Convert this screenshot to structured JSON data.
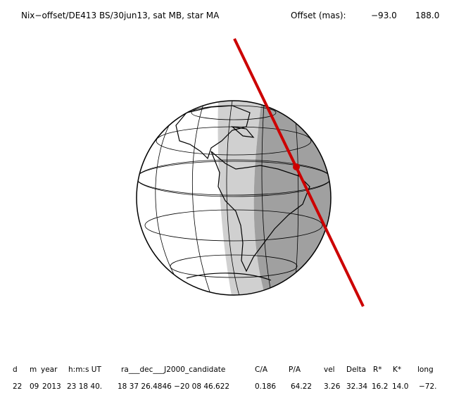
{
  "header": {
    "title": "Nix−offset/DE413 BS/30jun13, sat MB, star MA",
    "offset_label": "Offset (mas):",
    "offset_values": [
      "−93.0",
      "188.0"
    ]
  },
  "table": {
    "columns": [
      "d",
      "m",
      "year",
      "h:m:s UT",
      "ra___dec___J2000_candidate",
      "C/A",
      "P/A",
      "vel",
      "Delta",
      "R*",
      "K*",
      "long"
    ],
    "rows": [
      [
        "22",
        "09",
        "2013",
        "23 18 40.",
        "18 37 26.4846 −20 08 46.622",
        "0.186",
        "64.22",
        "3.26",
        "32.34",
        "16.2",
        "14.0",
        "−72."
      ]
    ]
  }
}
